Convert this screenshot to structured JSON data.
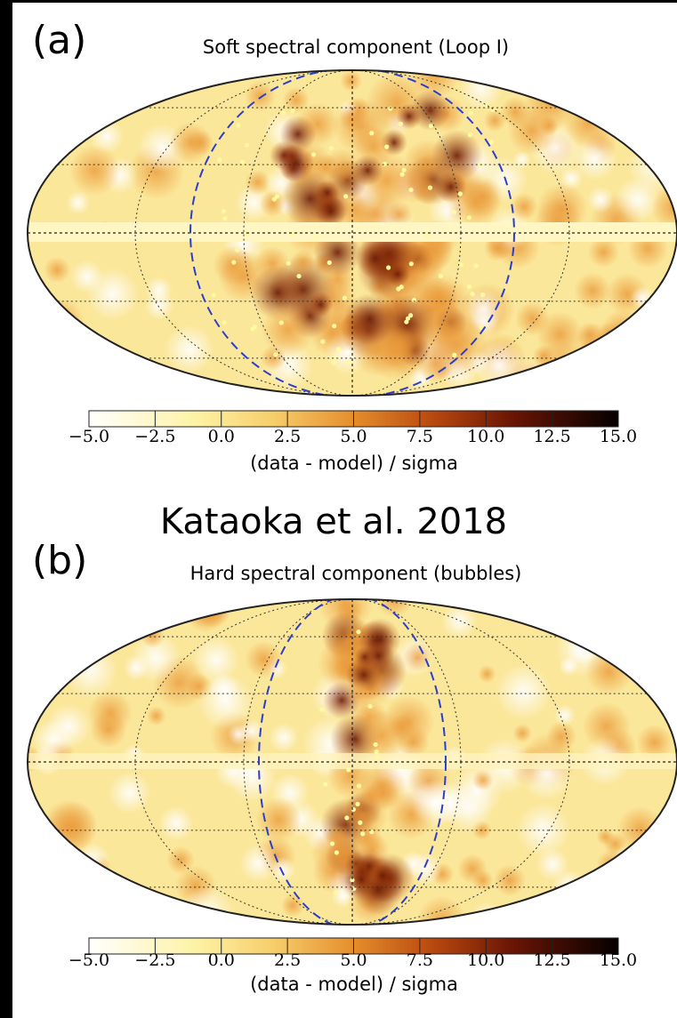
{
  "panels": [
    {
      "label": "(a)",
      "title": "Soft spectral component (Loop I)",
      "colorbar": {
        "lim": [
          -5,
          15
        ],
        "ticks": [
          {
            "value": -5,
            "label": "−5.0"
          },
          {
            "value": -2.5,
            "label": "−2.5"
          },
          {
            "value": 0,
            "label": "0.0"
          },
          {
            "value": 2.5,
            "label": "2.5"
          },
          {
            "value": 5,
            "label": "5.0"
          },
          {
            "value": 7.5,
            "label": "7.5"
          },
          {
            "value": 10,
            "label": "10.0"
          },
          {
            "value": 12.5,
            "label": "12.5"
          },
          {
            "value": 15,
            "label": "15.0"
          }
        ],
        "label": "(data - model) / sigma"
      }
    },
    {
      "label": "(b)",
      "title": "Hard spectral component (bubbles)",
      "colorbar": {
        "lim": [
          -5,
          15
        ],
        "ticks": [
          {
            "value": -5,
            "label": "−5.0"
          },
          {
            "value": -2.5,
            "label": "−2.5"
          },
          {
            "value": 0,
            "label": "0.0"
          },
          {
            "value": 2.5,
            "label": "2.5"
          },
          {
            "value": 5,
            "label": "5.0"
          },
          {
            "value": 7.5,
            "label": "7.5"
          },
          {
            "value": 10,
            "label": "10.0"
          },
          {
            "value": 12.5,
            "label": "12.5"
          },
          {
            "value": 15,
            "label": "15.0"
          }
        ],
        "label": "(data - model) / sigma"
      }
    }
  ],
  "caption": "Kataoka et al. 2018"
}
